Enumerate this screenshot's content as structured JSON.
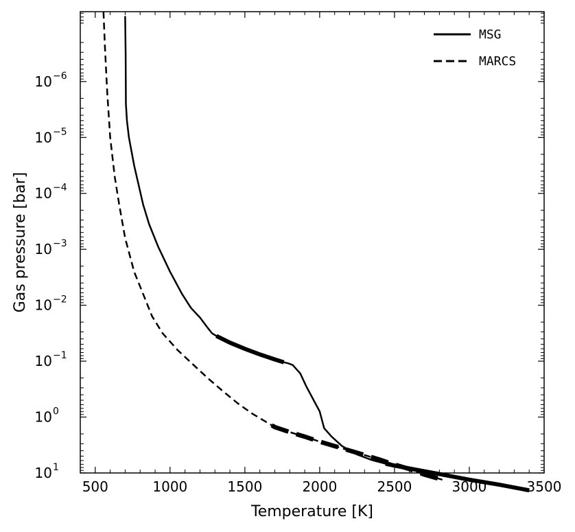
{
  "chart_data": {
    "type": "line",
    "title": "",
    "xlabel": "Temperature [K]",
    "ylabel": "Gas pressure [bar]",
    "xlim": [
      400,
      3500
    ],
    "ylim_log10": [
      1,
      -7.25
    ],
    "y_scale": "log",
    "y_inverted": true,
    "grid": false,
    "legend_position": "top-right",
    "x_ticks": [
      500,
      1000,
      1500,
      2000,
      2500,
      3000,
      3500
    ],
    "y_ticks": [
      {
        "exp": -6,
        "base": "10",
        "label": "−6"
      },
      {
        "exp": -5,
        "base": "10",
        "label": "−5"
      },
      {
        "exp": -4,
        "base": "10",
        "label": "−4"
      },
      {
        "exp": -3,
        "base": "10",
        "label": "−3"
      },
      {
        "exp": -2,
        "base": "10",
        "label": "−2"
      },
      {
        "exp": -1,
        "base": "10",
        "label": "−1"
      },
      {
        "exp": 0,
        "base": "10",
        "label": "0"
      },
      {
        "exp": 1,
        "base": "10",
        "label": "1"
      }
    ],
    "series": [
      {
        "name": "MSG",
        "style": "solid",
        "points": [
          [
            700,
            -7.17
          ],
          [
            703,
            -6.5
          ],
          [
            705,
            -5.6
          ],
          [
            712,
            -5.3
          ],
          [
            725,
            -5.0
          ],
          [
            760,
            -4.5
          ],
          [
            820,
            -3.8
          ],
          [
            860,
            -3.45
          ],
          [
            920,
            -3.05
          ],
          [
            1000,
            -2.6
          ],
          [
            1080,
            -2.2
          ],
          [
            1140,
            -1.95
          ],
          [
            1200,
            -1.78
          ],
          [
            1250,
            -1.6
          ],
          [
            1280,
            -1.5
          ],
          [
            1310,
            -1.45
          ],
          [
            1400,
            -1.33
          ],
          [
            1500,
            -1.22
          ],
          [
            1600,
            -1.12
          ],
          [
            1700,
            -1.03
          ],
          [
            1760,
            -0.98
          ],
          [
            1790,
            -0.96
          ],
          [
            1820,
            -0.93
          ],
          [
            1840,
            -0.87
          ],
          [
            1870,
            -0.78
          ],
          [
            1910,
            -0.55
          ],
          [
            1950,
            -0.35
          ],
          [
            2000,
            -0.1
          ],
          [
            2030,
            0.2
          ],
          [
            2080,
            0.35
          ],
          [
            2150,
            0.52
          ],
          [
            2250,
            0.67
          ],
          [
            2350,
            0.77
          ],
          [
            2450,
            0.84
          ],
          [
            2600,
            0.92
          ],
          [
            2800,
            1.02
          ],
          [
            3000,
            1.12
          ],
          [
            3200,
            1.21
          ],
          [
            3400,
            1.31
          ]
        ],
        "emphasized_ranges": [
          [
            1310,
            1760
          ],
          [
            2440,
            3400
          ]
        ]
      },
      {
        "name": "MARCS",
        "style": "dashed",
        "points": [
          [
            555,
            -7.25
          ],
          [
            565,
            -6.6
          ],
          [
            580,
            -5.8
          ],
          [
            600,
            -5.0
          ],
          [
            630,
            -4.3
          ],
          [
            660,
            -3.8
          ],
          [
            700,
            -3.2
          ],
          [
            760,
            -2.6
          ],
          [
            820,
            -2.2
          ],
          [
            880,
            -1.8
          ],
          [
            950,
            -1.5
          ],
          [
            1050,
            -1.2
          ],
          [
            1150,
            -0.95
          ],
          [
            1250,
            -0.7
          ],
          [
            1350,
            -0.47
          ],
          [
            1450,
            -0.25
          ],
          [
            1550,
            -0.06
          ],
          [
            1650,
            0.1
          ],
          [
            1700,
            0.18
          ],
          [
            1800,
            0.27
          ],
          [
            1900,
            0.35
          ],
          [
            2000,
            0.44
          ],
          [
            2100,
            0.52
          ],
          [
            2200,
            0.6
          ],
          [
            2300,
            0.68
          ],
          [
            2400,
            0.76
          ],
          [
            2500,
            0.85
          ],
          [
            2600,
            0.93
          ],
          [
            2700,
            1.03
          ],
          [
            2820,
            1.12
          ]
        ],
        "emphasized_ranges": [
          [
            1680,
            2820
          ]
        ]
      }
    ],
    "legend": [
      {
        "label": "MSG",
        "style": "solid"
      },
      {
        "label": "MARCS",
        "style": "dashed"
      }
    ]
  }
}
